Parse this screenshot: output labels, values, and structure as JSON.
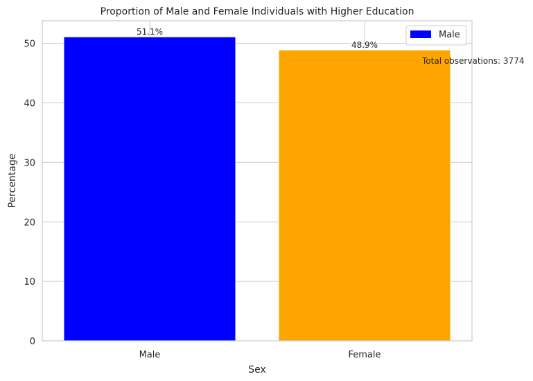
{
  "chart_data": {
    "type": "bar",
    "title": "Proportion of Male and Female Individuals with Higher Education",
    "xlabel": "Sex",
    "ylabel": "Percentage",
    "categories": [
      "Male",
      "Female"
    ],
    "values": [
      51.1,
      48.9
    ],
    "value_labels": [
      "51.1%",
      "48.9%"
    ],
    "colors": [
      "#0000ff",
      "#ffa500"
    ],
    "ylim": [
      0,
      53.8
    ],
    "yticks": [
      0,
      10,
      20,
      30,
      40,
      50
    ],
    "grid": true,
    "legend": {
      "placement": "top-right",
      "entries": [
        {
          "label": "Male",
          "color": "#0000ff"
        }
      ]
    },
    "annotation": "Total observations: 3774"
  }
}
